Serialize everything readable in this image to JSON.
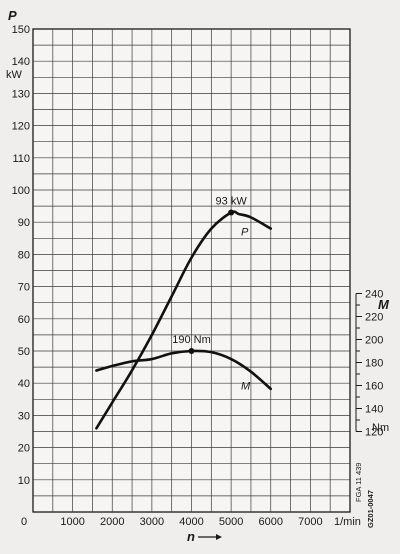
{
  "chart_data": {
    "type": "line",
    "x": {
      "label": "n",
      "unit": "1/min",
      "ticks": [
        0,
        1000,
        2000,
        3000,
        4000,
        5000,
        6000,
        7000
      ],
      "tick_labels": [
        "0",
        "1000",
        "2000",
        "3000",
        "4000",
        "5000",
        "6000",
        "7000"
      ],
      "range": [
        0,
        8000
      ],
      "minor_step": 500
    },
    "y_left": {
      "label": "P",
      "unit": "kW",
      "ticks": [
        10,
        20,
        30,
        40,
        50,
        60,
        70,
        80,
        90,
        100,
        110,
        120,
        130,
        140,
        150
      ],
      "tick_labels": [
        "10",
        "20",
        "30",
        "40",
        "50",
        "60",
        "70",
        "80",
        "90",
        "100",
        "110",
        "120",
        "130",
        "140",
        "150"
      ],
      "range": [
        0,
        150
      ],
      "minor_step": 5
    },
    "y_right": {
      "label": "M",
      "unit": "Nm",
      "ticks": [
        120,
        140,
        160,
        180,
        200,
        220,
        240
      ],
      "tick_labels": [
        "120",
        "140",
        "160",
        "180",
        "200",
        "220",
        "240"
      ],
      "range": [
        120,
        240
      ]
    },
    "series": [
      {
        "name": "P",
        "axis": "left",
        "x": [
          1600,
          2000,
          2500,
          3000,
          3500,
          4000,
          4500,
          5000,
          5200,
          5500,
          6000
        ],
        "y": [
          26,
          34,
          44,
          55,
          67,
          79,
          88,
          93,
          92.5,
          91.5,
          88
        ]
      },
      {
        "name": "M",
        "axis": "right",
        "x": [
          1600,
          2000,
          2500,
          3000,
          3500,
          4000,
          4500,
          5000,
          5500,
          6000
        ],
        "y": [
          173,
          177,
          181,
          183,
          188,
          190,
          189,
          183,
          172,
          157
        ]
      }
    ],
    "annotations": [
      {
        "text": "93 kW",
        "series": "P",
        "x": 5000,
        "y": 93
      },
      {
        "text": "190 Nm",
        "series": "M",
        "x": 4000,
        "y": 190
      }
    ],
    "grid": true
  },
  "side_text": {
    "code_1": "FGA 11 439",
    "code_2": "GZ01-0047"
  }
}
